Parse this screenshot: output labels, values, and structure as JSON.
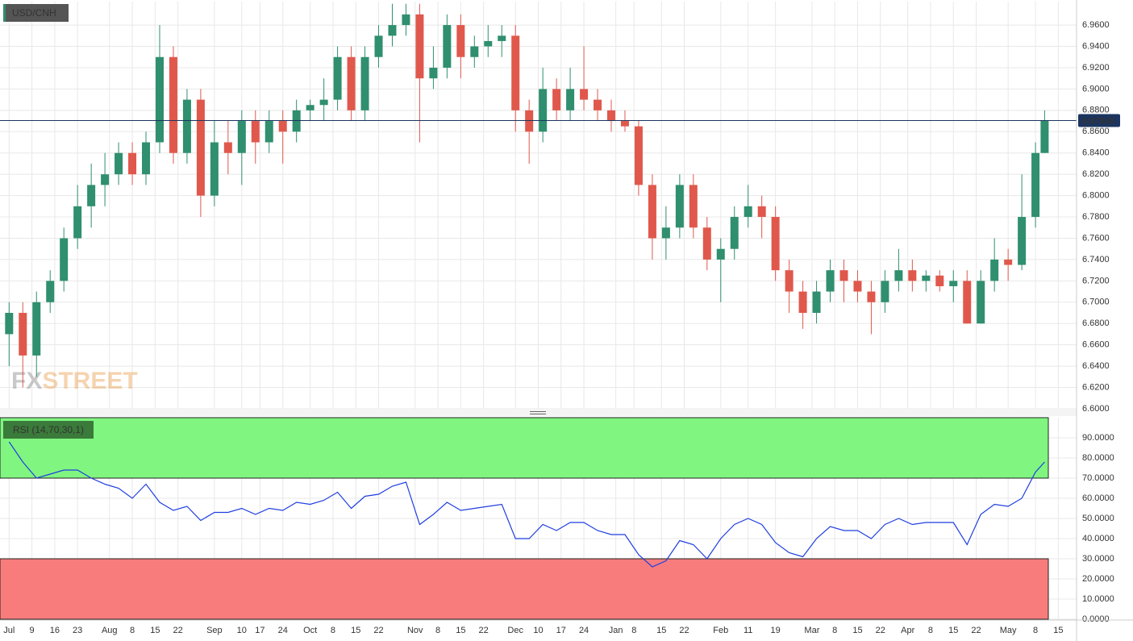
{
  "chart_data": [
    {
      "type": "candlestick",
      "title": "USD/CNH",
      "x": [
        0,
        3,
        6,
        9,
        12,
        15,
        18,
        21,
        24,
        27,
        30,
        33,
        36,
        39,
        42,
        45,
        48,
        51,
        54,
        57,
        60,
        63,
        66,
        69,
        72,
        75,
        78,
        81,
        84,
        87,
        90,
        93,
        96,
        99,
        102,
        105,
        108,
        111,
        114,
        117,
        120,
        123,
        126,
        129,
        132,
        135,
        138,
        141,
        144,
        147,
        150,
        153,
        156,
        159,
        162,
        165,
        168,
        171,
        174,
        177,
        180,
        183,
        186,
        189,
        192,
        195,
        198,
        201,
        204,
        207,
        210,
        213,
        216,
        219,
        222,
        225,
        227
      ],
      "open": [
        6.67,
        6.69,
        6.65,
        6.7,
        6.72,
        6.76,
        6.79,
        6.81,
        6.82,
        6.84,
        6.82,
        6.85,
        6.93,
        6.84,
        6.89,
        6.8,
        6.85,
        6.84,
        6.87,
        6.85,
        6.87,
        6.86,
        6.88,
        6.885,
        6.89,
        6.93,
        6.88,
        6.93,
        6.95,
        6.96,
        6.97,
        6.91,
        6.92,
        6.96,
        6.93,
        6.94,
        6.945,
        6.95,
        6.88,
        6.86,
        6.9,
        6.88,
        6.9,
        6.89,
        6.88,
        6.87,
        6.865,
        6.81,
        6.76,
        6.77,
        6.81,
        6.77,
        6.74,
        6.75,
        6.78,
        6.79,
        6.78,
        6.73,
        6.71,
        6.69,
        6.71,
        6.73,
        6.72,
        6.71,
        6.7,
        6.72,
        6.73,
        6.72,
        6.725,
        6.715,
        6.72,
        6.68,
        6.72,
        6.74,
        6.735,
        6.78,
        6.84
      ],
      "high": [
        6.7,
        6.7,
        6.71,
        6.73,
        6.77,
        6.81,
        6.83,
        6.84,
        6.85,
        6.85,
        6.86,
        6.96,
        6.94,
        6.9,
        6.9,
        6.87,
        6.87,
        6.88,
        6.88,
        6.88,
        6.88,
        6.89,
        6.89,
        6.91,
        6.94,
        6.94,
        6.94,
        6.96,
        6.98,
        6.98,
        6.98,
        6.94,
        6.97,
        6.97,
        6.95,
        6.96,
        6.96,
        6.96,
        6.89,
        6.92,
        6.91,
        6.92,
        6.94,
        6.9,
        6.89,
        6.88,
        6.87,
        6.82,
        6.79,
        6.82,
        6.82,
        6.78,
        6.76,
        6.79,
        6.81,
        6.8,
        6.79,
        6.74,
        6.72,
        6.72,
        6.74,
        6.74,
        6.73,
        6.72,
        6.73,
        6.75,
        6.74,
        6.73,
        6.73,
        6.73,
        6.73,
        6.73,
        6.76,
        6.75,
        6.82,
        6.85,
        6.88
      ],
      "low": [
        6.64,
        6.62,
        6.63,
        6.69,
        6.71,
        6.75,
        6.77,
        6.79,
        6.81,
        6.81,
        6.81,
        6.84,
        6.83,
        6.83,
        6.78,
        6.79,
        6.82,
        6.81,
        6.83,
        6.84,
        6.83,
        6.85,
        6.87,
        6.87,
        6.88,
        6.87,
        6.87,
        6.92,
        6.94,
        6.95,
        6.85,
        6.9,
        6.91,
        6.91,
        6.92,
        6.93,
        6.93,
        6.86,
        6.83,
        6.85,
        6.87,
        6.87,
        6.88,
        6.87,
        6.86,
        6.86,
        6.8,
        6.74,
        6.74,
        6.76,
        6.76,
        6.73,
        6.7,
        6.74,
        6.77,
        6.76,
        6.72,
        6.69,
        6.675,
        6.68,
        6.7,
        6.7,
        6.7,
        6.67,
        6.69,
        6.71,
        6.71,
        6.71,
        6.71,
        6.7,
        6.68,
        6.68,
        6.71,
        6.72,
        6.73,
        6.77,
        6.84
      ],
      "close": [
        6.69,
        6.65,
        6.7,
        6.72,
        6.76,
        6.79,
        6.81,
        6.82,
        6.84,
        6.82,
        6.85,
        6.93,
        6.84,
        6.89,
        6.8,
        6.85,
        6.84,
        6.87,
        6.85,
        6.87,
        6.86,
        6.88,
        6.885,
        6.89,
        6.93,
        6.88,
        6.93,
        6.95,
        6.96,
        6.97,
        6.91,
        6.92,
        6.96,
        6.93,
        6.94,
        6.945,
        6.95,
        6.88,
        6.86,
        6.9,
        6.88,
        6.9,
        6.89,
        6.88,
        6.87,
        6.865,
        6.81,
        6.76,
        6.77,
        6.81,
        6.77,
        6.74,
        6.75,
        6.78,
        6.79,
        6.78,
        6.73,
        6.71,
        6.69,
        6.71,
        6.73,
        6.72,
        6.71,
        6.7,
        6.72,
        6.73,
        6.72,
        6.725,
        6.715,
        6.72,
        6.68,
        6.72,
        6.74,
        6.735,
        6.78,
        6.84,
        6.8704
      ],
      "up_color": "#2f8f6f",
      "down_color": "#e0584c",
      "current_price": {
        "value": 6.8704,
        "label": "6.87040"
      },
      "xlim": [
        -2,
        234
      ],
      "ylim": [
        6.6,
        6.982
      ],
      "yticks": [
        {
          "value": 6.6,
          "label": "6.6000"
        },
        {
          "value": 6.62,
          "label": "6.6200"
        },
        {
          "value": 6.64,
          "label": "6.6400"
        },
        {
          "value": 6.66,
          "label": "6.6600"
        },
        {
          "value": 6.68,
          "label": "6.6800"
        },
        {
          "value": 6.7,
          "label": "6.7000"
        },
        {
          "value": 6.72,
          "label": "6.7200"
        },
        {
          "value": 6.74,
          "label": "6.7400"
        },
        {
          "value": 6.76,
          "label": "6.7600"
        },
        {
          "value": 6.78,
          "label": "6.7800"
        },
        {
          "value": 6.8,
          "label": "6.8000"
        },
        {
          "value": 6.82,
          "label": "6.8200"
        },
        {
          "value": 6.84,
          "label": "6.8400"
        },
        {
          "value": 6.86,
          "label": "6.8600"
        },
        {
          "value": 6.88,
          "label": "6.8800"
        },
        {
          "value": 6.9,
          "label": "6.9000"
        },
        {
          "value": 6.92,
          "label": "6.9200"
        },
        {
          "value": 6.94,
          "label": "6.9400"
        },
        {
          "value": 6.96,
          "label": "6.9600"
        }
      ],
      "grid": true,
      "watermark": [
        "FX",
        "STREET"
      ]
    },
    {
      "type": "line",
      "title": "RSI (14,70,30,1)",
      "x": [
        0,
        3,
        6,
        9,
        12,
        15,
        18,
        21,
        24,
        27,
        30,
        33,
        36,
        39,
        42,
        45,
        48,
        51,
        54,
        57,
        60,
        63,
        66,
        69,
        72,
        75,
        78,
        81,
        84,
        87,
        90,
        93,
        96,
        99,
        102,
        105,
        108,
        111,
        114,
        117,
        120,
        123,
        126,
        129,
        132,
        135,
        138,
        141,
        144,
        147,
        150,
        153,
        156,
        159,
        162,
        165,
        168,
        171,
        174,
        177,
        180,
        183,
        186,
        189,
        192,
        195,
        198,
        201,
        204,
        207,
        210,
        213,
        216,
        219,
        222,
        225,
        227
      ],
      "series": [
        {
          "name": "RSI (14,70,30,1)",
          "color": "#1f3fe0",
          "values": [
            88,
            78,
            70,
            72,
            74,
            74,
            70,
            67,
            65,
            60,
            67,
            58,
            54,
            56,
            49,
            53,
            53,
            55,
            52,
            55,
            54,
            58,
            57,
            59,
            63,
            55,
            61,
            62,
            66,
            68,
            47,
            52,
            58,
            54,
            55,
            56,
            57,
            40,
            40,
            47,
            44,
            48,
            48,
            44,
            42,
            42,
            32,
            26,
            29,
            39,
            37,
            30,
            40,
            47,
            50,
            47,
            38,
            33,
            31,
            40,
            46,
            44,
            44,
            40,
            47,
            50,
            47,
            48,
            48,
            48,
            37,
            52,
            57,
            56,
            60,
            73,
            78
          ]
        }
      ],
      "overbought": 70,
      "oversold": 30,
      "overbought_color": "#80f580",
      "oversold_color": "#f87c7c",
      "xlim": [
        -2,
        234
      ],
      "ylim": [
        0,
        100
      ],
      "yticks": [
        {
          "value": 0,
          "label": "0.0000"
        },
        {
          "value": 10,
          "label": "10.0000"
        },
        {
          "value": 20,
          "label": "20.0000"
        },
        {
          "value": 30,
          "label": "30.0000"
        },
        {
          "value": 40,
          "label": "40.0000"
        },
        {
          "value": 50,
          "label": "50.0000"
        },
        {
          "value": 60,
          "label": "60.0000"
        },
        {
          "value": 70,
          "label": "70.0000"
        },
        {
          "value": 80,
          "label": "80.0000"
        },
        {
          "value": 90,
          "label": "90.0000"
        }
      ],
      "xticks": [
        {
          "value": 0,
          "label": "Jul"
        },
        {
          "value": 5,
          "label": "9"
        },
        {
          "value": 10,
          "label": "16"
        },
        {
          "value": 15,
          "label": "23"
        },
        {
          "value": 22,
          "label": "Aug"
        },
        {
          "value": 27,
          "label": "8"
        },
        {
          "value": 32,
          "label": "15"
        },
        {
          "value": 37,
          "label": "22"
        },
        {
          "value": 45,
          "label": "Sep"
        },
        {
          "value": 51,
          "label": "10"
        },
        {
          "value": 55,
          "label": "17"
        },
        {
          "value": 60,
          "label": "24"
        },
        {
          "value": 66,
          "label": "Oct"
        },
        {
          "value": 71,
          "label": "8"
        },
        {
          "value": 76,
          "label": "15"
        },
        {
          "value": 81,
          "label": "22"
        },
        {
          "value": 89,
          "label": "Nov"
        },
        {
          "value": 94,
          "label": "8"
        },
        {
          "value": 99,
          "label": "15"
        },
        {
          "value": 104,
          "label": "22"
        },
        {
          "value": 111,
          "label": "Dec"
        },
        {
          "value": 116,
          "label": "10"
        },
        {
          "value": 121,
          "label": "17"
        },
        {
          "value": 126,
          "label": "24"
        },
        {
          "value": 133,
          "label": "Jan"
        },
        {
          "value": 137,
          "label": "8"
        },
        {
          "value": 143,
          "label": "15"
        },
        {
          "value": 148,
          "label": "22"
        },
        {
          "value": 156,
          "label": "Feb"
        },
        {
          "value": 162,
          "label": "11"
        },
        {
          "value": 168,
          "label": "19"
        },
        {
          "value": 176,
          "label": "Mar"
        },
        {
          "value": 181,
          "label": "8"
        },
        {
          "value": 186,
          "label": "15"
        },
        {
          "value": 191,
          "label": "22"
        },
        {
          "value": 197,
          "label": "Apr"
        },
        {
          "value": 202,
          "label": "8"
        },
        {
          "value": 207,
          "label": "15"
        },
        {
          "value": 212,
          "label": "22"
        },
        {
          "value": 219,
          "label": "May"
        },
        {
          "value": 225,
          "label": "8"
        },
        {
          "value": 230,
          "label": "15"
        }
      ],
      "grid": true
    }
  ]
}
